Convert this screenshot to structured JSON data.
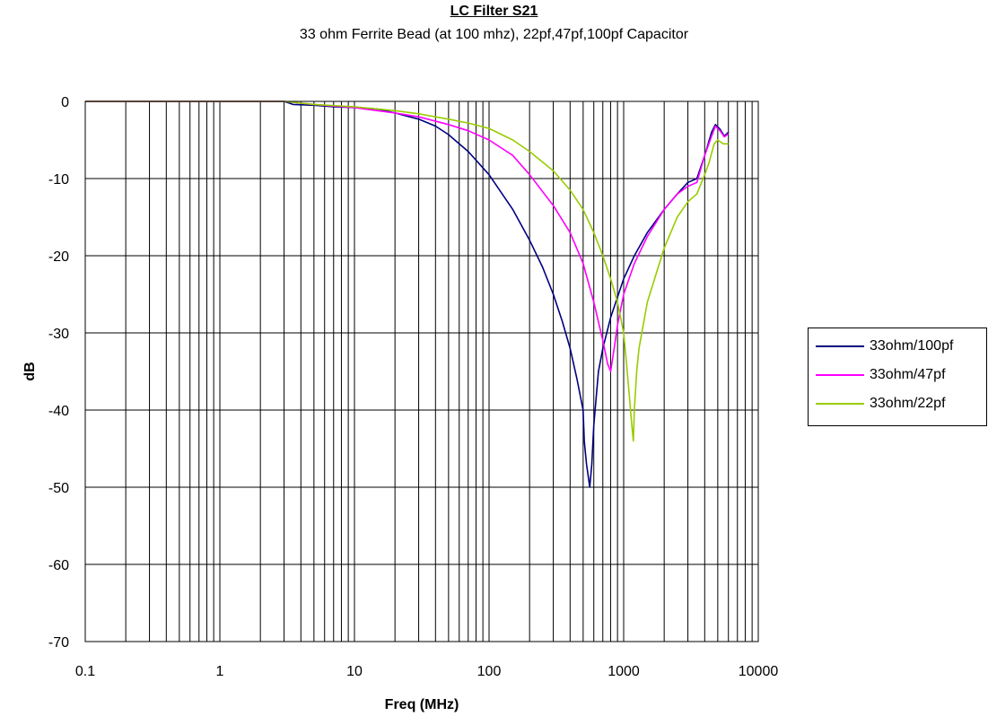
{
  "chart_data": {
    "type": "line",
    "title": "LC Filter S21",
    "subtitle": "33 ohm Ferrite Bead (at 100 mhz), 22pf,47pf,100pf Capacitor",
    "xlabel": "Freq (MHz)",
    "ylabel": "dB",
    "xscale": "log",
    "xlim": [
      0.1,
      10000
    ],
    "ylim": [
      -70,
      0
    ],
    "x_ticks": [
      "0.1",
      "1",
      "10",
      "100",
      "1000",
      "10000"
    ],
    "y_ticks": [
      "0",
      "-10",
      "-20",
      "-30",
      "-40",
      "-50",
      "-60",
      "-70"
    ],
    "grid": true,
    "legend_position": "right",
    "series": [
      {
        "name": "33ohm/100pf",
        "color": "#000080",
        "points": [
          [
            0.1,
            0
          ],
          [
            1,
            0
          ],
          [
            3,
            0
          ],
          [
            3.5,
            -0.4
          ],
          [
            5,
            -0.5
          ],
          [
            7,
            -0.7
          ],
          [
            10,
            -0.8
          ],
          [
            15,
            -1
          ],
          [
            20,
            -1.5
          ],
          [
            30,
            -2.3
          ],
          [
            40,
            -3.2
          ],
          [
            50,
            -4.3
          ],
          [
            70,
            -6.5
          ],
          [
            100,
            -9.5
          ],
          [
            150,
            -14
          ],
          [
            200,
            -18
          ],
          [
            250,
            -21.5
          ],
          [
            300,
            -25
          ],
          [
            350,
            -28.5
          ],
          [
            400,
            -32
          ],
          [
            450,
            -36
          ],
          [
            500,
            -40
          ],
          [
            510,
            -44
          ],
          [
            530,
            -47
          ],
          [
            560,
            -50
          ],
          [
            580,
            -47
          ],
          [
            600,
            -42
          ],
          [
            620,
            -39
          ],
          [
            650,
            -35
          ],
          [
            700,
            -32
          ],
          [
            800,
            -28
          ],
          [
            1000,
            -23
          ],
          [
            1200,
            -20
          ],
          [
            1500,
            -17
          ],
          [
            2000,
            -14
          ],
          [
            2500,
            -12
          ],
          [
            3000,
            -10.5
          ],
          [
            3500,
            -10
          ],
          [
            4000,
            -7
          ],
          [
            4500,
            -4
          ],
          [
            4800,
            -3
          ],
          [
            5200,
            -3.6
          ],
          [
            5600,
            -4.5
          ],
          [
            6000,
            -4
          ]
        ]
      },
      {
        "name": "33ohm/47pf",
        "color": "#ff00ff",
        "points": [
          [
            0.1,
            0
          ],
          [
            1,
            0
          ],
          [
            3,
            0
          ],
          [
            5,
            -0.4
          ],
          [
            10,
            -0.8
          ],
          [
            20,
            -1.5
          ],
          [
            30,
            -2
          ],
          [
            50,
            -3
          ],
          [
            70,
            -3.8
          ],
          [
            100,
            -5
          ],
          [
            150,
            -7
          ],
          [
            200,
            -9.5
          ],
          [
            300,
            -13.5
          ],
          [
            400,
            -17
          ],
          [
            500,
            -21
          ],
          [
            600,
            -26
          ],
          [
            700,
            -31
          ],
          [
            760,
            -34
          ],
          [
            800,
            -35
          ],
          [
            850,
            -32
          ],
          [
            900,
            -29
          ],
          [
            1000,
            -25
          ],
          [
            1200,
            -21
          ],
          [
            1500,
            -17.5
          ],
          [
            2000,
            -14
          ],
          [
            2500,
            -12
          ],
          [
            3000,
            -11
          ],
          [
            3500,
            -10.5
          ],
          [
            4000,
            -7
          ],
          [
            4500,
            -4.5
          ],
          [
            4800,
            -3.2
          ],
          [
            5200,
            -3.8
          ],
          [
            5600,
            -4.6
          ],
          [
            6000,
            -4.2
          ]
        ]
      },
      {
        "name": "33ohm/22pf",
        "color": "#99cc00",
        "points": [
          [
            0.1,
            0
          ],
          [
            1,
            0
          ],
          [
            3,
            0
          ],
          [
            5,
            -0.4
          ],
          [
            10,
            -0.7
          ],
          [
            20,
            -1.2
          ],
          [
            30,
            -1.6
          ],
          [
            50,
            -2.3
          ],
          [
            70,
            -2.8
          ],
          [
            100,
            -3.5
          ],
          [
            150,
            -5
          ],
          [
            200,
            -6.5
          ],
          [
            300,
            -9
          ],
          [
            400,
            -11.5
          ],
          [
            500,
            -14
          ],
          [
            600,
            -17
          ],
          [
            700,
            -20
          ],
          [
            800,
            -23
          ],
          [
            900,
            -26
          ],
          [
            1000,
            -30
          ],
          [
            1050,
            -34
          ],
          [
            1100,
            -38
          ],
          [
            1150,
            -42
          ],
          [
            1180,
            -44
          ],
          [
            1200,
            -40
          ],
          [
            1250,
            -35
          ],
          [
            1300,
            -32
          ],
          [
            1500,
            -26
          ],
          [
            2000,
            -19
          ],
          [
            2500,
            -15
          ],
          [
            3000,
            -13
          ],
          [
            3500,
            -12
          ],
          [
            4000,
            -9.5
          ],
          [
            4300,
            -8
          ],
          [
            4700,
            -5.5
          ],
          [
            5000,
            -5
          ],
          [
            5500,
            -5.5
          ],
          [
            6000,
            -5.5
          ]
        ]
      }
    ]
  }
}
